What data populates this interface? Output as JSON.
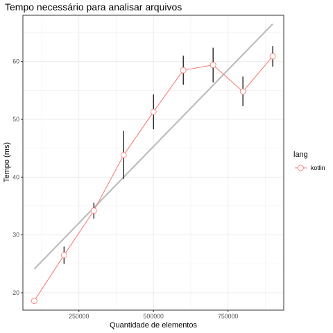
{
  "chart_data": {
    "type": "line",
    "title": "Tempo necessário para analisar arquivos",
    "xlabel": "Quantidade de elementos",
    "ylabel": "Tempo (ms)",
    "xlim": [
      62000,
      937000
    ],
    "ylim": [
      17.0,
      68.0
    ],
    "x_ticks": [
      250000,
      500000,
      750000
    ],
    "x_tick_labels": [
      "250000",
      "500000",
      "750000"
    ],
    "y_ticks": [
      20,
      30,
      40,
      50,
      60
    ],
    "y_tick_labels": [
      "20",
      "30",
      "40",
      "50",
      "60"
    ],
    "grid": true,
    "legend": {
      "title": "lang",
      "placement": "right"
    },
    "series": [
      {
        "name": "kotlin",
        "color": "#f8766d",
        "x": [
          100000,
          200000,
          300000,
          400000,
          500000,
          600000,
          700000,
          800000,
          900000
        ],
        "y": [
          18.6,
          26.5,
          34.2,
          43.8,
          51.3,
          58.5,
          59.4,
          54.8,
          60.9
        ],
        "error_low": [
          18.6,
          25.0,
          32.8,
          39.7,
          48.3,
          56.0,
          56.4,
          52.3,
          59.1
        ],
        "error_high": [
          18.6,
          28.0,
          35.6,
          48.0,
          54.3,
          61.0,
          62.4,
          57.4,
          62.7
        ]
      }
    ],
    "trend_line": {
      "color": "#bdbdbd",
      "x": [
        100000,
        900000
      ],
      "y": [
        24.1,
        66.5
      ]
    }
  }
}
